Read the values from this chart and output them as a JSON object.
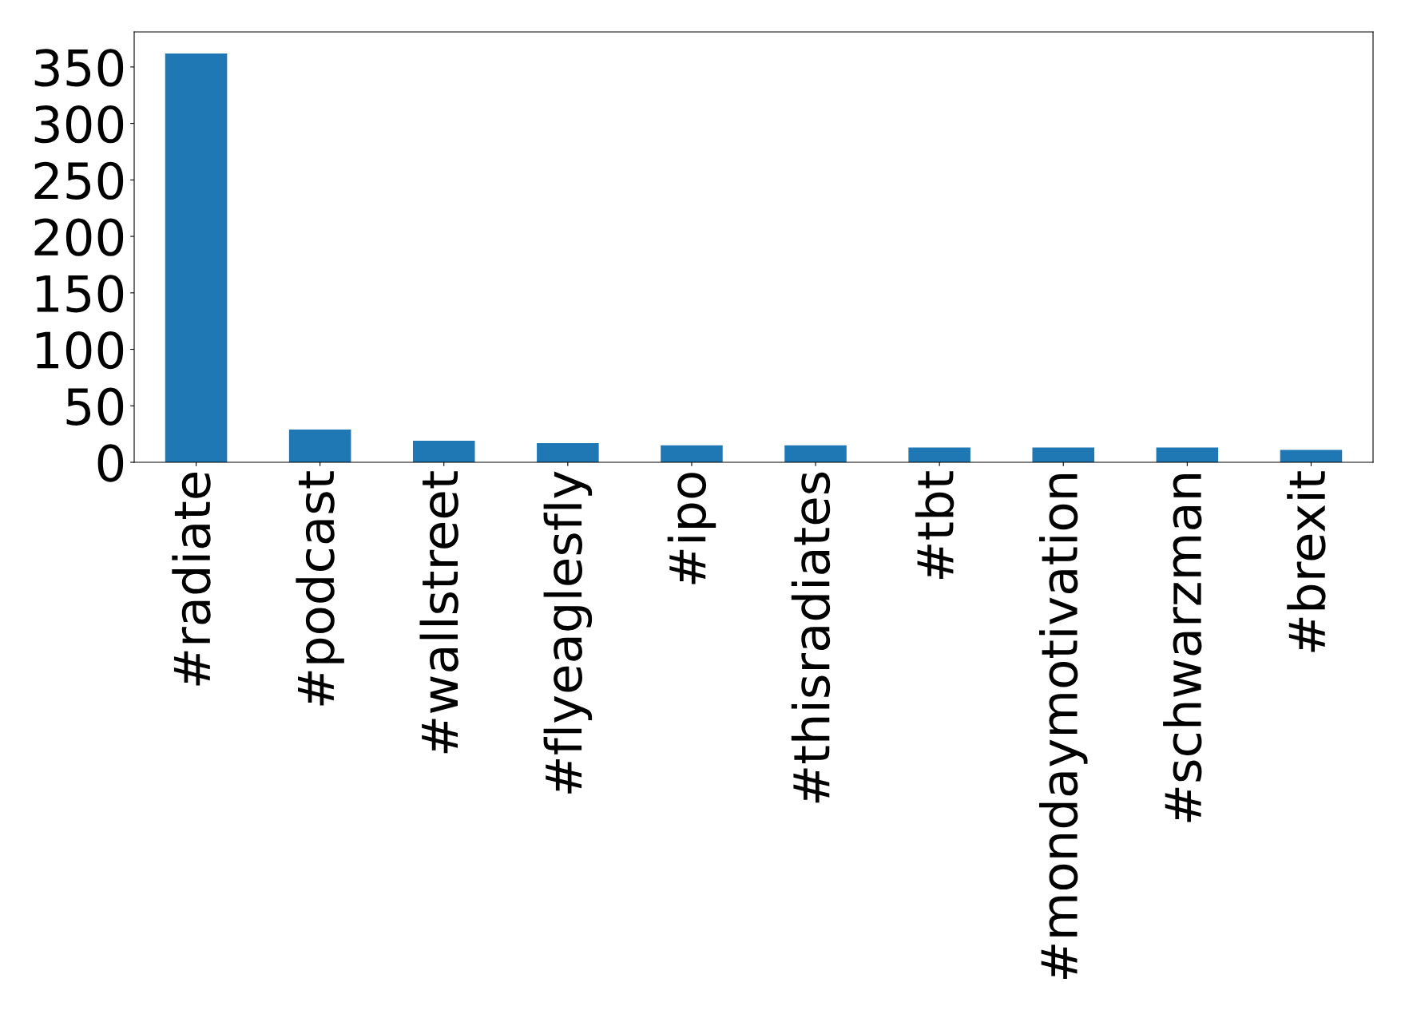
{
  "chart_data": {
    "type": "bar",
    "categories": [
      "#radiate",
      "#podcast",
      "#wallstreet",
      "#flyeaglesfly",
      "#ipo",
      "#thisradiates",
      "#tbt",
      "#mondaymotivation",
      "#schwarzman",
      "#brexit"
    ],
    "values": [
      362,
      29,
      19,
      17,
      15,
      15,
      13,
      13,
      13,
      11
    ],
    "color": "#1f77b4",
    "ylim": [
      0,
      381
    ],
    "yticks": [
      0,
      50,
      100,
      150,
      200,
      250,
      300,
      350
    ],
    "grid": false,
    "legend": false
  }
}
